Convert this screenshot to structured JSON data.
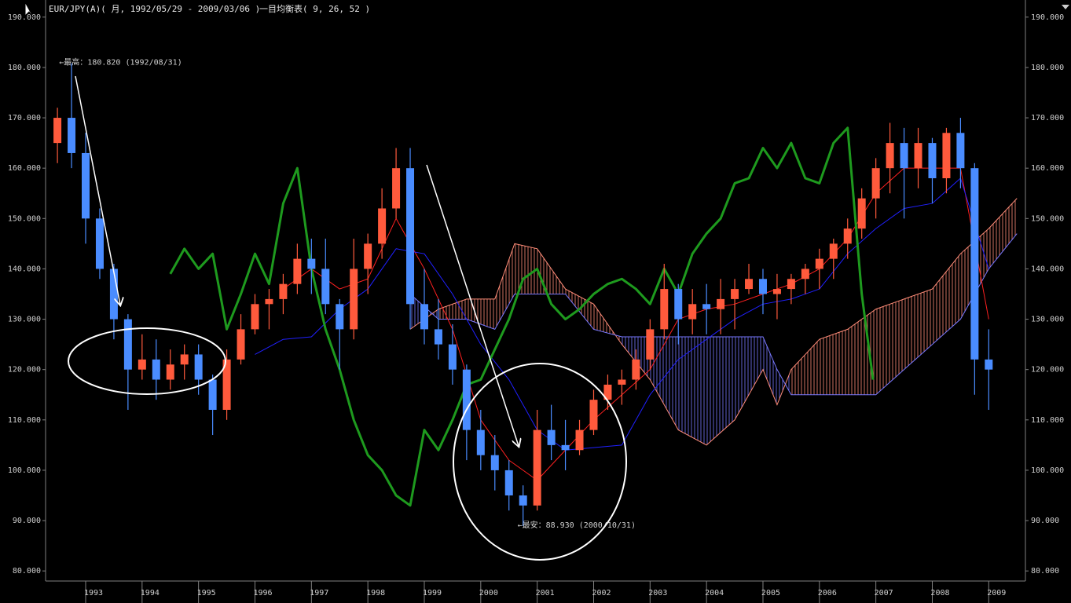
{
  "chart_data": {
    "type": "candlestick",
    "title": "EUR/JPY(A)( 月, 1992/05/29 - 2009/03/06 )",
    "subtitle": "一目均衡表( 9, 26, 52 )",
    "xlim": [
      1992.29,
      2009.65
    ],
    "xticks": [
      1993,
      1994,
      1995,
      1996,
      1997,
      1998,
      1999,
      2000,
      2001,
      2002,
      2003,
      2004,
      2005,
      2006,
      2007,
      2008,
      2009
    ],
    "ylim": [
      78,
      193.4
    ],
    "yticks": [
      {
        "value": 80,
        "label": "80.000"
      },
      {
        "value": 90,
        "label": "90.000"
      },
      {
        "value": 100,
        "label": "100.000"
      },
      {
        "value": 110,
        "label": "110.000"
      },
      {
        "value": 120,
        "label": "120.000"
      },
      {
        "value": 130,
        "label": "130.000"
      },
      {
        "value": 140,
        "label": "140.000"
      },
      {
        "value": 150,
        "label": "150.000"
      },
      {
        "value": 160,
        "label": "160.000"
      },
      {
        "value": 170,
        "label": "170.000"
      },
      {
        "value": 180,
        "label": "180.000"
      },
      {
        "value": 190,
        "label": "190.000"
      }
    ],
    "up_color": "#ff5a3c",
    "down_color": "#4a8cff",
    "annotations": [
      {
        "text": "←最高：180.820 (1992/08/31)",
        "x": 1992.67,
        "y": 180.82
      },
      {
        "text": "←最安：88.930 (2000/10/31)",
        "x": 2000.79,
        "y": 88.93
      }
    ],
    "candles": {
      "x": [
        1992.5,
        1992.75,
        1993.0,
        1993.25,
        1993.5,
        1993.75,
        1994.0,
        1994.25,
        1994.5,
        1994.75,
        1995.0,
        1995.25,
        1995.5,
        1995.75,
        1996.0,
        1996.25,
        1996.5,
        1996.75,
        1997.0,
        1997.25,
        1997.5,
        1997.75,
        1998.0,
        1998.25,
        1998.5,
        1998.75,
        1999.0,
        1999.25,
        1999.5,
        1999.75,
        2000.0,
        2000.25,
        2000.5,
        2000.75,
        2001.0,
        2001.25,
        2001.5,
        2001.75,
        2002.0,
        2002.25,
        2002.5,
        2002.75,
        2003.0,
        2003.25,
        2003.5,
        2003.75,
        2004.0,
        2004.25,
        2004.5,
        2004.75,
        2005.0,
        2005.25,
        2005.5,
        2005.75,
        2006.0,
        2006.25,
        2006.5,
        2006.75,
        2007.0,
        2007.25,
        2007.5,
        2007.75,
        2008.0,
        2008.25,
        2008.5,
        2008.75,
        2009.0
      ],
      "open": [
        165,
        170,
        163,
        150,
        140,
        130,
        120,
        122,
        118,
        121,
        123,
        118,
        112,
        122,
        128,
        133,
        134,
        137,
        142,
        140,
        133,
        128,
        140,
        145,
        152,
        160,
        133,
        128,
        125,
        120,
        108,
        103,
        100,
        95,
        93,
        108,
        105,
        104,
        108,
        114,
        117,
        118,
        122,
        128,
        136,
        130,
        133,
        132,
        134,
        136,
        138,
        135,
        136,
        138,
        140,
        142,
        145,
        148,
        154,
        160,
        165,
        160,
        165,
        158,
        167,
        160,
        122
      ],
      "high": [
        172,
        180.82,
        167,
        152,
        141,
        131,
        127,
        126,
        124,
        125,
        125,
        119,
        124,
        131,
        135,
        136,
        139,
        145,
        146,
        146,
        134,
        146,
        147,
        156,
        164,
        164,
        140,
        134,
        129,
        121,
        112,
        107,
        102,
        97,
        112,
        113,
        110,
        110,
        116,
        119,
        120,
        124,
        130,
        141,
        137,
        136,
        137,
        138,
        138,
        141,
        140,
        139,
        139,
        141,
        144,
        146,
        150,
        156,
        162,
        169,
        168,
        168,
        166,
        168,
        170,
        161,
        128
      ],
      "low": [
        161,
        160,
        145,
        138,
        126,
        112,
        118,
        114,
        116,
        118,
        115,
        107,
        110,
        121,
        127,
        128,
        131,
        135,
        135,
        131,
        120,
        126,
        135,
        142,
        150,
        128,
        125,
        122,
        117,
        102,
        100,
        96,
        92,
        88.93,
        92,
        102,
        100,
        103,
        107,
        112,
        113,
        116,
        120,
        126,
        125,
        127,
        127,
        127,
        128,
        135,
        131,
        130,
        133,
        135,
        136,
        138,
        142,
        146,
        150,
        155,
        150,
        156,
        153,
        155,
        156,
        115,
        112
      ],
      "close": [
        170,
        163,
        150,
        140,
        130,
        120,
        122,
        118,
        121,
        123,
        118,
        112,
        122,
        128,
        133,
        134,
        137,
        142,
        140,
        133,
        128,
        140,
        145,
        152,
        160,
        133,
        128,
        125,
        120,
        108,
        103,
        100,
        95,
        93,
        108,
        105,
        104,
        108,
        114,
        117,
        118,
        122,
        128,
        136,
        130,
        133,
        132,
        134,
        136,
        138,
        135,
        136,
        138,
        140,
        142,
        145,
        148,
        154,
        160,
        165,
        160,
        165,
        158,
        167,
        160,
        122,
        120
      ]
    },
    "cloud": {
      "x": [
        1998.75,
        1999.25,
        1999.75,
        2000.25,
        2000.6,
        2001.0,
        2001.5,
        2002.0,
        2002.5,
        2003.0,
        2003.5,
        2004.0,
        2004.5,
        2005.0,
        2005.25,
        2005.5,
        2006.0,
        2006.5,
        2007.0,
        2007.5,
        2008.0,
        2008.5,
        2009.0,
        2009.5
      ],
      "span_a": [
        128,
        132,
        134,
        134,
        145,
        144,
        136,
        133,
        125,
        118,
        108,
        105,
        110,
        120,
        113,
        120,
        126,
        128,
        132,
        134,
        136,
        143,
        148,
        154
      ],
      "span_b": [
        135,
        130,
        130,
        128,
        135,
        135,
        135,
        128,
        126.5,
        126.5,
        126.5,
        126.5,
        126.5,
        126.5,
        120,
        115,
        115,
        115,
        115,
        120,
        125,
        130,
        140,
        147
      ],
      "up_color": "#ff8c78",
      "down_color": "#7878ff"
    },
    "lines": [
      {
        "color": "#ff2020",
        "x": [
          1996.5,
          1997.0,
          1997.5,
          1998.0,
          1998.5,
          1999.0,
          1999.5,
          2000.0,
          2000.5,
          2001.0,
          2001.5,
          2002.0,
          2002.5,
          2003.0,
          2003.5,
          2004.0,
          2004.5,
          2005.0,
          2005.5,
          2006.0,
          2006.5,
          2007.0,
          2007.5,
          2008.0,
          2008.5,
          2009.0
        ],
        "values": [
          136,
          140,
          136,
          138,
          150,
          140,
          128,
          110,
          102,
          98,
          104,
          110,
          115,
          120,
          130,
          132,
          133,
          135,
          137,
          140,
          146,
          155,
          160,
          160,
          160,
          130
        ]
      },
      {
        "color": "#2020ff",
        "x": [
          1996.0,
          1996.5,
          1997.0,
          1997.5,
          1998.0,
          1998.5,
          1999.0,
          1999.5,
          2000.0,
          2000.5,
          2001.0,
          2001.5,
          2002.0,
          2002.5,
          2003.0,
          2003.5,
          2004.0,
          2004.5,
          2005.0,
          2005.5,
          2006.0,
          2006.5,
          2007.0,
          2007.5,
          2008.0,
          2008.5,
          2009.0
        ],
        "values": [
          123,
          126,
          126.5,
          132,
          136,
          144,
          143,
          135,
          125,
          118,
          108,
          104,
          104.5,
          105,
          115,
          122,
          126,
          130,
          133,
          134,
          136,
          143,
          148,
          152,
          153,
          158,
          140
        ]
      },
      {
        "color": "#1e9a1e",
        "x": [
          1994.5,
          1994.75,
          1995.0,
          1995.25,
          1995.5,
          1995.75,
          1996.0,
          1996.25,
          1996.5,
          1996.75,
          1997.0,
          1997.25,
          1997.5,
          1997.75,
          1998.0,
          1998.25,
          1998.5,
          1998.75,
          1999.0,
          1999.25,
          1999.5,
          1999.75,
          2000.0,
          2000.25,
          2000.5,
          2000.75,
          2001.0,
          2001.25,
          2001.5,
          2001.75,
          2002.0,
          2002.25,
          2002.5,
          2002.75,
          2003.0,
          2003.25,
          2003.5,
          2003.75,
          2004.0,
          2004.25,
          2004.5,
          2004.75,
          2005.0,
          2005.25,
          2005.5,
          2005.75,
          2006.0,
          2006.25,
          2006.5,
          2006.75,
          2006.95
        ],
        "values": [
          139,
          144,
          140,
          143,
          128,
          135,
          143,
          137,
          153,
          160,
          140,
          128,
          120,
          110,
          103,
          100,
          95,
          93,
          108,
          104,
          110,
          117,
          118,
          124,
          130,
          138,
          140,
          133,
          130,
          132,
          135,
          137,
          138,
          136,
          133,
          140,
          135,
          143,
          147,
          150,
          157,
          158,
          164,
          160,
          165,
          158,
          157,
          165,
          168,
          135,
          118
        ]
      }
    ]
  }
}
